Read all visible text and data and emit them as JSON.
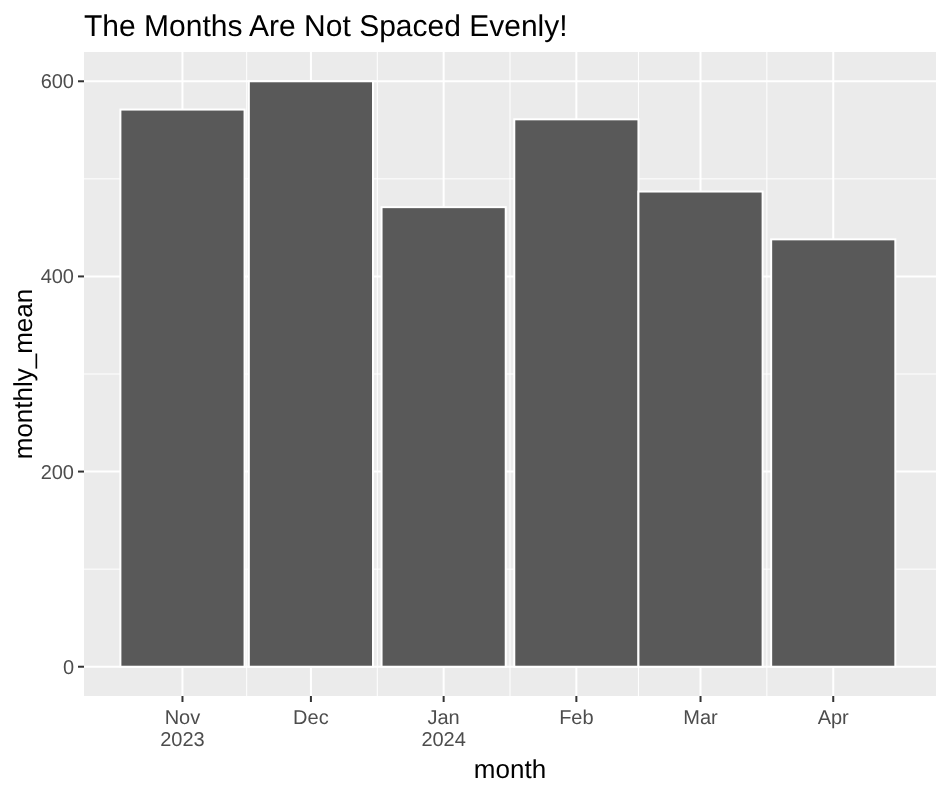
{
  "chart_data": {
    "type": "bar",
    "title": "The Months Are Not Spaced Evenly!",
    "xlabel": "month",
    "ylabel": "monthly_mean",
    "x": [
      "2023-11",
      "2023-12",
      "2024-01",
      "2024-02",
      "2024-03",
      "2024-04"
    ],
    "values": [
      571,
      600,
      471,
      561,
      487,
      438
    ],
    "color": "#595959",
    "xlim": [
      "2023-10-09",
      "2024-04-25"
    ],
    "xticks": [
      {
        "value": "2023-11",
        "label": "Nov\n2023"
      },
      {
        "value": "2023-12",
        "label": "Dec"
      },
      {
        "value": "2024-01",
        "label": "Jan\n2024"
      },
      {
        "value": "2024-02",
        "label": "Feb"
      },
      {
        "value": "2024-03",
        "label": "Mar"
      },
      {
        "value": "2024-04",
        "label": "Apr"
      }
    ],
    "ylim": [
      -30,
      630
    ],
    "yticks": [
      0,
      200,
      400,
      600
    ],
    "grid": true
  }
}
